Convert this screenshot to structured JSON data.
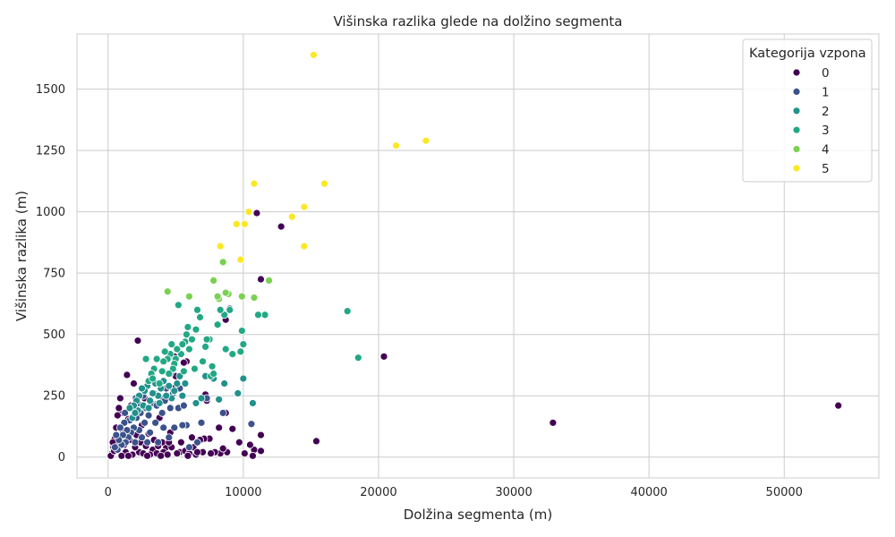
{
  "chart_data": {
    "type": "scatter",
    "title": "Višinska razlika glede na dolžino segmenta",
    "xlabel": "Dolžina segmenta (m)",
    "ylabel": "Višinska razlika (m)",
    "xlim": [
      -2300,
      57000
    ],
    "ylim": [
      -85,
      1725
    ],
    "xticks": [
      0,
      10000,
      20000,
      30000,
      40000,
      50000
    ],
    "yticks": [
      0,
      250,
      500,
      750,
      1000,
      1250,
      1500
    ],
    "grid": true,
    "legend": {
      "title": "Kategorija vzpona",
      "placement": "top-right"
    },
    "series": [
      {
        "name": "0",
        "color": "#440154",
        "points": [
          [
            54000,
            210
          ],
          [
            32900,
            140
          ],
          [
            20400,
            410
          ],
          [
            15400,
            65
          ],
          [
            12800,
            940
          ],
          [
            11000,
            995
          ],
          [
            11300,
            725
          ],
          [
            11300,
            90
          ],
          [
            11300,
            25
          ],
          [
            10800,
            30
          ],
          [
            10600,
            135
          ],
          [
            10500,
            50
          ],
          [
            10100,
            15
          ],
          [
            10700,
            5
          ],
          [
            9700,
            60
          ],
          [
            9200,
            115
          ],
          [
            9000,
            605
          ],
          [
            8700,
            560
          ],
          [
            8700,
            180
          ],
          [
            8800,
            20
          ],
          [
            8300,
            15
          ],
          [
            8200,
            120
          ],
          [
            7900,
            20
          ],
          [
            7500,
            75
          ],
          [
            7200,
            255
          ],
          [
            7300,
            230
          ],
          [
            7100,
            75
          ],
          [
            7000,
            20
          ],
          [
            6800,
            70
          ],
          [
            6500,
            10
          ],
          [
            6200,
            80
          ],
          [
            5800,
            390
          ],
          [
            5600,
            385
          ],
          [
            5500,
            130
          ],
          [
            5400,
            60
          ],
          [
            5300,
            20
          ],
          [
            5000,
            330
          ],
          [
            4900,
            410
          ],
          [
            4800,
            280
          ],
          [
            4600,
            100
          ],
          [
            4300,
            40
          ],
          [
            4000,
            60
          ],
          [
            3800,
            160
          ],
          [
            3500,
            215
          ],
          [
            3300,
            30
          ],
          [
            3000,
            95
          ],
          [
            2700,
            240
          ],
          [
            2500,
            130
          ],
          [
            2300,
            20
          ],
          [
            2200,
            475
          ],
          [
            1900,
            300
          ],
          [
            1700,
            210
          ],
          [
            1500,
            155
          ],
          [
            1400,
            335
          ],
          [
            1200,
            50
          ],
          [
            1100,
            100
          ],
          [
            1000,
            180
          ],
          [
            900,
            240
          ],
          [
            800,
            200
          ],
          [
            700,
            170
          ],
          [
            600,
            120
          ],
          [
            500,
            75
          ],
          [
            400,
            40
          ],
          [
            300,
            15
          ],
          [
            200,
            5
          ],
          [
            350,
            60
          ],
          [
            450,
            25
          ],
          [
            650,
            90
          ],
          [
            850,
            50
          ],
          [
            1300,
            20
          ],
          [
            1600,
            70
          ],
          [
            1800,
            10
          ],
          [
            2000,
            40
          ],
          [
            2100,
            90
          ],
          [
            2400,
            60
          ],
          [
            2600,
            15
          ],
          [
            2800,
            45
          ],
          [
            3100,
            10
          ],
          [
            3400,
            70
          ],
          [
            3600,
            15
          ],
          [
            3700,
            45
          ],
          [
            4100,
            20
          ],
          [
            4400,
            10
          ],
          [
            4700,
            40
          ],
          [
            4500,
            60
          ],
          [
            5100,
            15
          ],
          [
            5700,
            25
          ],
          [
            6000,
            15
          ],
          [
            6300,
            40
          ],
          [
            6600,
            20
          ],
          [
            7600,
            15
          ],
          [
            8500,
            35
          ],
          [
            5900,
            5
          ],
          [
            3900,
            5
          ],
          [
            2900,
            5
          ],
          [
            1000,
            5
          ],
          [
            1500,
            5
          ]
        ]
      },
      {
        "name": "1",
        "color": "#3b528b",
        "points": [
          [
            10600,
            135
          ],
          [
            8500,
            180
          ],
          [
            7300,
            240
          ],
          [
            6900,
            140
          ],
          [
            6600,
            60
          ],
          [
            6000,
            40
          ],
          [
            5800,
            130
          ],
          [
            5500,
            130
          ],
          [
            5300,
            280
          ],
          [
            5200,
            200
          ],
          [
            4900,
            120
          ],
          [
            4800,
            260
          ],
          [
            4600,
            200
          ],
          [
            4500,
            80
          ],
          [
            4300,
            280
          ],
          [
            4100,
            120
          ],
          [
            4000,
            180
          ],
          [
            3900,
            240
          ],
          [
            3700,
            60
          ],
          [
            3500,
            140
          ],
          [
            3400,
            260
          ],
          [
            3200,
            220
          ],
          [
            3100,
            100
          ],
          [
            3000,
            170
          ],
          [
            2900,
            60
          ],
          [
            2800,
            200
          ],
          [
            2700,
            140
          ],
          [
            2600,
            250
          ],
          [
            2500,
            80
          ],
          [
            2400,
            180
          ],
          [
            2300,
            110
          ],
          [
            2200,
            220
          ],
          [
            2100,
            160
          ],
          [
            2000,
            60
          ],
          [
            1900,
            120
          ],
          [
            1800,
            200
          ],
          [
            1700,
            100
          ],
          [
            1600,
            150
          ],
          [
            1500,
            80
          ],
          [
            1400,
            110
          ],
          [
            1300,
            60
          ],
          [
            1200,
            140
          ],
          [
            1100,
            90
          ],
          [
            1000,
            50
          ],
          [
            900,
            120
          ],
          [
            800,
            70
          ],
          [
            700,
            30
          ],
          [
            600,
            90
          ],
          [
            500,
            40
          ],
          [
            1250,
            180
          ],
          [
            2050,
            240
          ],
          [
            3600,
            210
          ],
          [
            4200,
            230
          ],
          [
            5600,
            210
          ]
        ]
      },
      {
        "name": "2",
        "color": "#21918c",
        "points": [
          [
            10700,
            220
          ],
          [
            10000,
            320
          ],
          [
            9600,
            260
          ],
          [
            8600,
            300
          ],
          [
            8200,
            235
          ],
          [
            7800,
            320
          ],
          [
            7200,
            330
          ],
          [
            6900,
            240
          ],
          [
            6500,
            220
          ],
          [
            5700,
            300
          ],
          [
            5500,
            250
          ],
          [
            5300,
            330
          ],
          [
            5100,
            300
          ],
          [
            4900,
            270
          ],
          [
            4700,
            240
          ],
          [
            4500,
            290
          ],
          [
            4300,
            250
          ],
          [
            4100,
            310
          ],
          [
            3900,
            280
          ],
          [
            3700,
            250
          ],
          [
            3500,
            300
          ],
          [
            3300,
            260
          ],
          [
            3100,
            230
          ],
          [
            2900,
            290
          ],
          [
            2700,
            270
          ],
          [
            2600,
            210
          ],
          [
            2500,
            280
          ],
          [
            2300,
            250
          ],
          [
            2200,
            190
          ],
          [
            2100,
            230
          ],
          [
            1900,
            210
          ],
          [
            1800,
            160
          ],
          [
            4600,
            340
          ],
          [
            3800,
            220
          ],
          [
            3000,
            200
          ],
          [
            2000,
            180
          ],
          [
            1600,
            200
          ]
        ]
      },
      {
        "name": "3",
        "color": "#22a884",
        "points": [
          [
            18500,
            405
          ],
          [
            17700,
            595
          ],
          [
            11600,
            580
          ],
          [
            11100,
            580
          ],
          [
            10800,
            650
          ],
          [
            10000,
            460
          ],
          [
            9900,
            515
          ],
          [
            9800,
            430
          ],
          [
            9200,
            420
          ],
          [
            9000,
            600
          ],
          [
            8700,
            440
          ],
          [
            8600,
            580
          ],
          [
            8300,
            600
          ],
          [
            8100,
            540
          ],
          [
            7700,
            370
          ],
          [
            7600,
            330
          ],
          [
            7500,
            480
          ],
          [
            7300,
            480
          ],
          [
            7200,
            450
          ],
          [
            7000,
            390
          ],
          [
            6800,
            570
          ],
          [
            6600,
            600
          ],
          [
            6500,
            520
          ],
          [
            6200,
            480
          ],
          [
            6000,
            440
          ],
          [
            5900,
            530
          ],
          [
            5800,
            500
          ],
          [
            5700,
            470
          ],
          [
            5500,
            460
          ],
          [
            5400,
            420
          ],
          [
            5200,
            620
          ],
          [
            5100,
            440
          ],
          [
            5000,
            400
          ],
          [
            4900,
            380
          ],
          [
            4800,
            360
          ],
          [
            4600,
            420
          ],
          [
            4500,
            340
          ],
          [
            4400,
            400
          ],
          [
            4200,
            430
          ],
          [
            4100,
            390
          ],
          [
            4000,
            350
          ],
          [
            3800,
            300
          ],
          [
            3600,
            400
          ],
          [
            3400,
            360
          ],
          [
            3200,
            340
          ],
          [
            3000,
            310
          ],
          [
            2800,
            400
          ],
          [
            3300,
            320
          ],
          [
            4700,
            460
          ],
          [
            6400,
            360
          ],
          [
            7800,
            340
          ],
          [
            5600,
            350
          ]
        ]
      },
      {
        "name": "4",
        "color": "#7ad151",
        "points": [
          [
            11900,
            720
          ],
          [
            10800,
            650
          ],
          [
            9900,
            655
          ],
          [
            8900,
            665
          ],
          [
            8700,
            670
          ],
          [
            8500,
            795
          ],
          [
            8200,
            645
          ],
          [
            8100,
            655
          ],
          [
            7800,
            720
          ],
          [
            6000,
            655
          ],
          [
            4400,
            675
          ]
        ]
      },
      {
        "name": "5",
        "color": "#fde725",
        "points": [
          [
            15200,
            1640
          ],
          [
            23500,
            1290
          ],
          [
            21300,
            1270
          ],
          [
            16000,
            1115
          ],
          [
            10800,
            1115
          ],
          [
            14500,
            1020
          ],
          [
            13600,
            980
          ],
          [
            10400,
            1000
          ],
          [
            10100,
            950
          ],
          [
            9500,
            950
          ],
          [
            14500,
            860
          ],
          [
            8300,
            860
          ],
          [
            9800,
            805
          ]
        ]
      }
    ]
  }
}
